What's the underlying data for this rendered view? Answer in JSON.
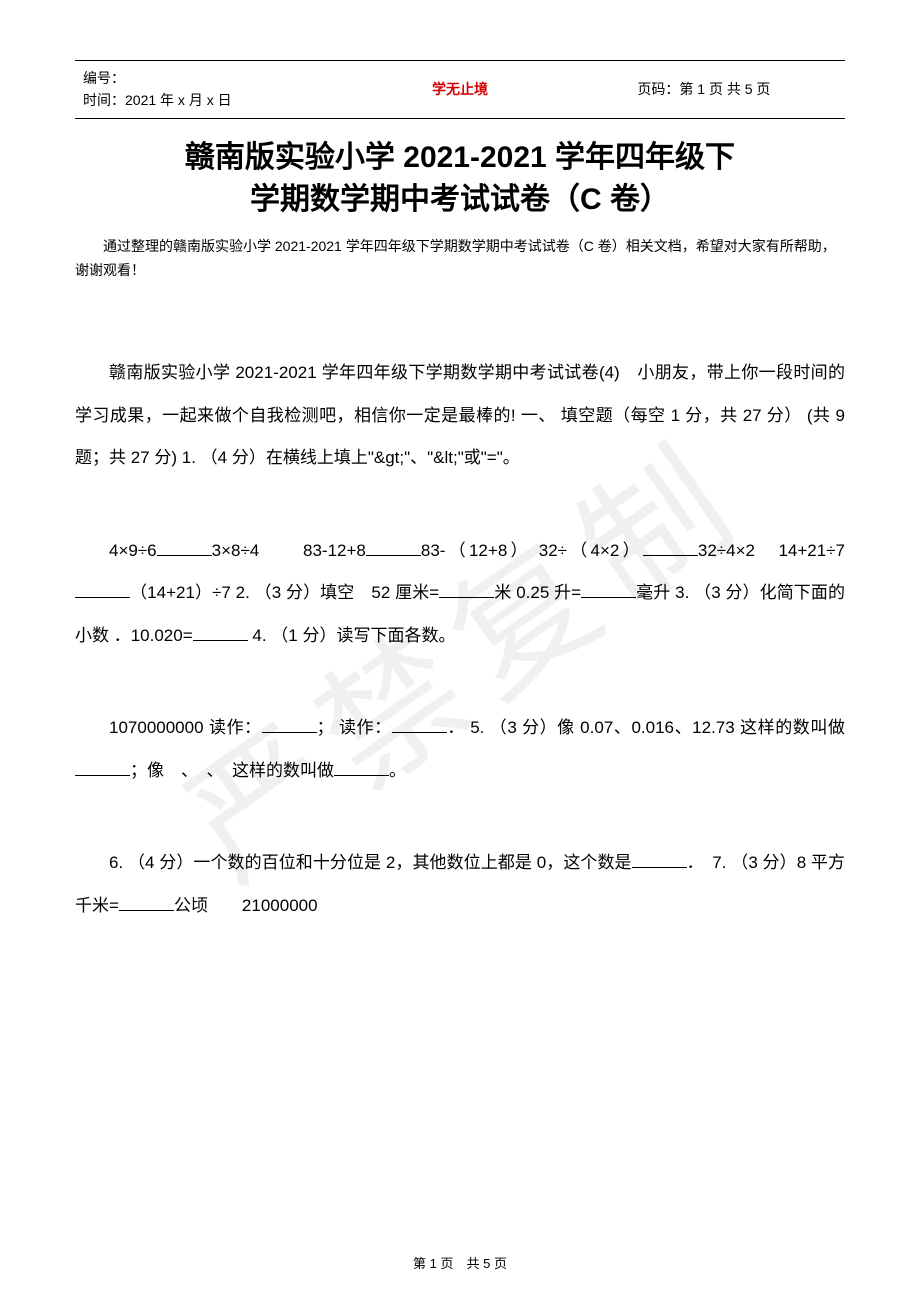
{
  "header": {
    "id_label": "编号：",
    "time_label": "时间：2021 年 x 月 x 日",
    "center_title": "学无止境",
    "page_label": "页码：第 1 页 共 5 页"
  },
  "title": {
    "line1": "赣南版实验小学 2021-2021 学年四年级下",
    "line2": "学期数学期中考试试卷（C 卷）"
  },
  "intro": "通过整理的赣南版实验小学 2021-2021 学年四年级下学期数学期中考试试卷（C 卷）相关文档，希望对大家有所帮助，谢谢观看！",
  "para1_a": "赣南版实验小学 2021-2021 学年四年级下学期数学期中考试试卷(4)　小朋友，带上你一段时间的学习成果，一起来做个自我检测吧，相信你一定是最棒的! 一、 填空题（每空 1 分，共 27 分） (共 9 题；共 27 分) 1. （4 分）在横线上填上\"&gt;\"、\"&lt;\"或\"=\"。",
  "para2_a": "4×9÷6",
  "para2_b": "3×8÷4　　83-12+8",
  "para2_c": "83-（12+8） 32÷（4×2）",
  "para2_d": "32÷4×2　14+21÷7",
  "para2_e": "（14+21）÷7 2. （3 分）填空　52 厘米=",
  "para2_f": "米 0.25 升=",
  "para2_g": "毫升  3. （3 分）化简下面的小数 ．10.020=",
  "para2_h": " 4. （1 分）读写下面各数。",
  "para3_a": "1070000000 读作：",
  "para3_b": "； 读作：",
  "para3_c": "． 5. （3 分）像 0.07、0.016、12.73 这样的数叫做",
  "para3_d": "；像　、　、　这样的数叫做",
  "para3_e": "。",
  "para4_a": "6. （4 分）一个数的百位和十分位是 2，其他数位上都是 0，这个数是",
  "para4_b": "．　7. （3 分）8 平方千米=",
  "para4_c": "公顷　　21000000",
  "footer": "第 1 页　共 5 页",
  "watermark": "严禁复制",
  "colors": {
    "title_red": "#d40000",
    "text": "#000000",
    "background": "#ffffff",
    "watermark": "rgba(0,0,0,0.06)"
  }
}
